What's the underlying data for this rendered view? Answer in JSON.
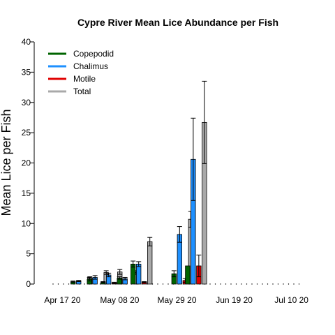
{
  "chart_data": {
    "type": "bar",
    "title": "Cypre River Mean Lice Abundance per Fish",
    "xlabel": "",
    "ylabel": "Mean Lice per Fish",
    "ylim": [
      0,
      40
    ],
    "yticks": [
      0,
      5,
      10,
      15,
      20,
      25,
      30,
      35,
      40
    ],
    "x_tick_labels": [
      "Apr 17 20",
      "May 08 20",
      "May 29 20",
      "Jun 19 20",
      "Jul 10 20"
    ],
    "x_tick_dates": [
      "2020-04-17",
      "2020-05-08",
      "2020-05-29",
      "2020-06-19",
      "2020-07-10"
    ],
    "xlim": [
      "2020-04-10",
      "2020-07-17"
    ],
    "sample_dates": [
      "2020-04-24",
      "2020-04-30",
      "2020-05-05",
      "2020-05-11",
      "2020-05-16",
      "2020-05-31",
      "2020-06-05",
      "2020-06-11"
    ],
    "legend_position": "top-left",
    "series": [
      {
        "name": "Copepodid",
        "color": "#006400",
        "values": [
          0.4,
          0.8,
          0.3,
          1.0,
          3.3,
          1.7,
          3.0,
          null
        ],
        "errors": [
          0.1,
          0.3,
          0.1,
          0.2,
          0.5,
          0.5,
          0.0,
          null
        ]
      },
      {
        "name": "Chalimus",
        "color": "#1E90FF",
        "values": [
          0.5,
          1.1,
          1.5,
          0.9,
          3.3,
          8.2,
          20.6,
          null
        ],
        "errors": [
          0.1,
          0.3,
          0.3,
          0.2,
          0.4,
          1.3,
          6.8,
          null
        ]
      },
      {
        "name": "Motile",
        "color": "#E00000",
        "values": [
          0.0,
          0.0,
          0.2,
          0.0,
          0.3,
          0.6,
          3.0,
          null
        ],
        "errors": [
          0.0,
          0.0,
          0.1,
          0.0,
          0.1,
          0.3,
          1.8,
          null
        ]
      },
      {
        "name": "Total",
        "color": "#A9A9A9",
        "values": [
          1.0,
          1.9,
          2.0,
          1.9,
          7.0,
          10.7,
          26.7,
          null
        ],
        "errors": [
          0.2,
          0.3,
          0.4,
          0.3,
          0.7,
          1.3,
          6.8,
          null
        ]
      }
    ],
    "grid": false
  }
}
